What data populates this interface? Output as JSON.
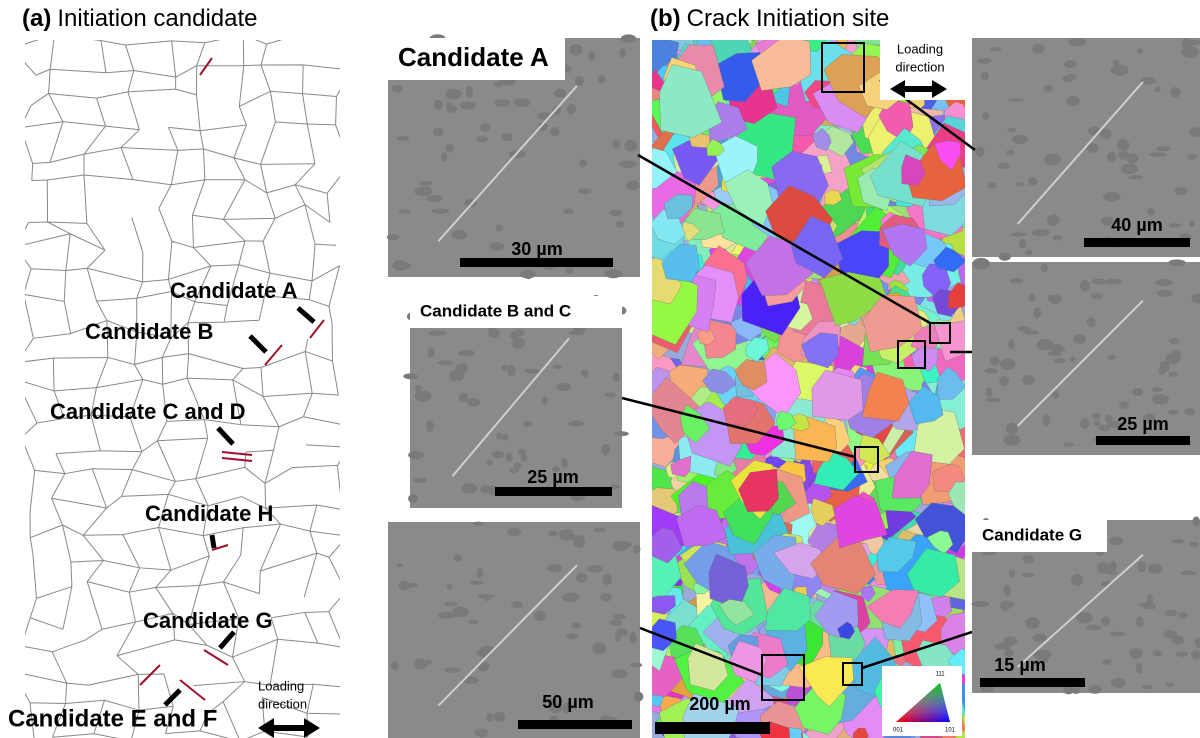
{
  "panel_a": {
    "label": "(a)",
    "title": "Initiation candidate",
    "candidates": [
      "Candidate A",
      "Candidate B",
      "Candidate C and D",
      "Candidate H",
      "Candidate G",
      "Candidate E and F"
    ],
    "loading_direction": [
      "Loading",
      "direction"
    ]
  },
  "panel_b": {
    "label": "(b)",
    "title": "Crack Initiation site",
    "loading_direction": [
      "Loading",
      "direction"
    ],
    "map_scale": "200 µm",
    "ipf_labels": [
      "111",
      "001",
      "101"
    ],
    "insets": [
      {
        "title": "Candidate A",
        "scale": "30 µm"
      },
      {
        "title": "Candidate B and C",
        "scale": "25 µm"
      },
      {
        "scale": "50 µm"
      },
      {
        "scale": "40 µm"
      },
      {
        "scale": "25 µm"
      },
      {
        "title": "Candidate G",
        "scale": "15 µm"
      }
    ]
  }
}
